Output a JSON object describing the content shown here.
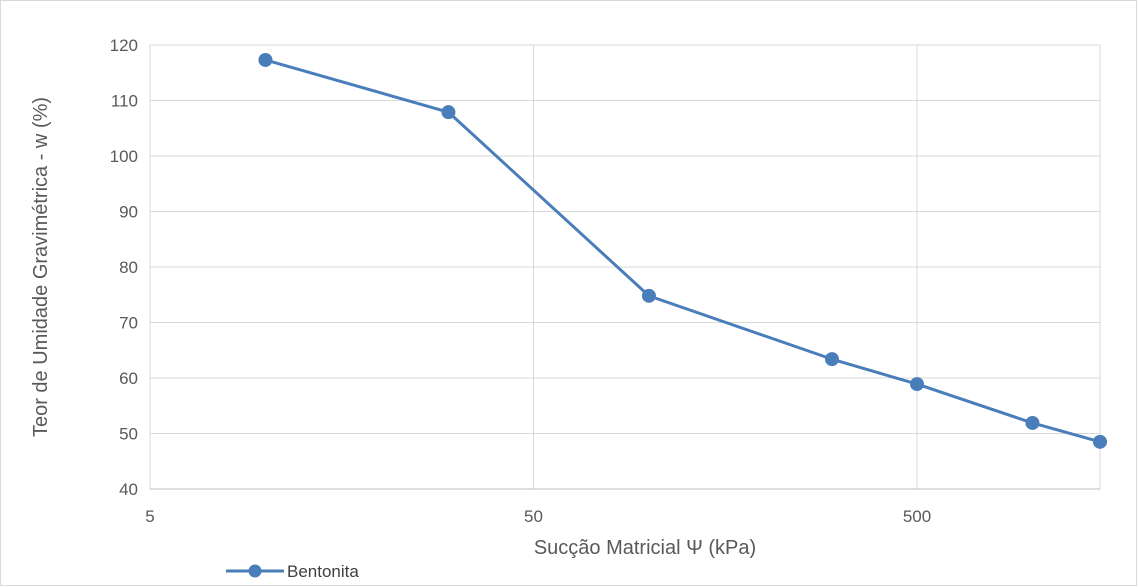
{
  "chart_data": {
    "type": "line",
    "title": "",
    "xlabel": "Sucção Matricial Ψ (kPa)",
    "ylabel": "Teor de Umidade Gravimétrica - w (%)",
    "x_scale": "log",
    "xlim": [
      5,
      1500
    ],
    "ylim": [
      40,
      120
    ],
    "x_ticks": [
      5,
      50,
      500
    ],
    "y_ticks": [
      40,
      50,
      60,
      70,
      80,
      90,
      100,
      110,
      120
    ],
    "grid": true,
    "legend_position": "bottom-left",
    "series": [
      {
        "name": "Bentonita",
        "color": "#4a7ebb",
        "marker": "circle",
        "x": [
          10,
          30,
          100,
          300,
          500,
          1000,
          1500
        ],
        "y": [
          117.3,
          107.9,
          74.8,
          63.4,
          58.9,
          51.9,
          48.5
        ]
      }
    ]
  }
}
